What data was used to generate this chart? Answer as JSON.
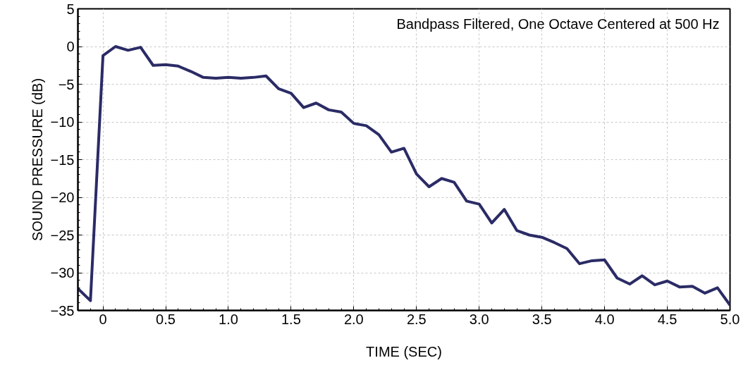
{
  "chart_data": {
    "type": "line",
    "title": "Bandpass Filtered, One Octave Centered at 500 Hz",
    "xlabel": "TIME (SEC)",
    "ylabel": "SOUND PRESSURE (dB)",
    "x": [
      -0.2,
      -0.1,
      0.0,
      0.1,
      0.2,
      0.3,
      0.4,
      0.5,
      0.6,
      0.7,
      0.8,
      0.9,
      1.0,
      1.1,
      1.2,
      1.3,
      1.4,
      1.5,
      1.6,
      1.7,
      1.8,
      1.9,
      2.0,
      2.1,
      2.2,
      2.3,
      2.4,
      2.5,
      2.6,
      2.7,
      2.8,
      2.9,
      3.0,
      3.1,
      3.2,
      3.3,
      3.4,
      3.5,
      3.6,
      3.7,
      3.8,
      3.9,
      4.0,
      4.1,
      4.2,
      4.3,
      4.4,
      4.5,
      4.6,
      4.7,
      4.8,
      4.9,
      5.0
    ],
    "series": [
      {
        "color": "#2b2b66",
        "values": [
          -32.1,
          -33.7,
          -1.2,
          0.0,
          -0.5,
          -0.1,
          -2.5,
          -2.4,
          -2.6,
          -3.3,
          -4.1,
          -4.2,
          -4.1,
          -4.2,
          -4.1,
          -3.9,
          -5.6,
          -6.2,
          -8.1,
          -7.5,
          -8.4,
          -8.7,
          -10.2,
          -10.5,
          -11.7,
          -14.0,
          -13.5,
          -16.9,
          -18.6,
          -17.5,
          -18.0,
          -20.5,
          -20.9,
          -23.4,
          -21.6,
          -24.4,
          -25.0,
          -25.3,
          -26.0,
          -26.8,
          -28.8,
          -28.4,
          -28.3,
          -30.7,
          -31.5,
          -30.4,
          -31.6,
          -31.1,
          -31.9,
          -31.8,
          -32.7,
          -32.0,
          -34.3
        ]
      }
    ],
    "xlim": [
      -0.2,
      5.0
    ],
    "ylim": [
      -35,
      5
    ],
    "xticks": [
      {
        "value": 0,
        "label": "0"
      },
      0.5,
      {
        "value": 1,
        "label": "1.0"
      },
      1.5,
      {
        "value": 2,
        "label": "2.0"
      },
      2.5,
      {
        "value": 3,
        "label": "3.0"
      },
      3.5,
      {
        "value": 4,
        "label": "4.0"
      },
      4.5,
      {
        "value": 5,
        "label": "5.0"
      }
    ],
    "yticks": [
      -35,
      -30,
      -25,
      -20,
      -15,
      -10,
      -5,
      0,
      5
    ],
    "grid": true,
    "marker": "none",
    "line_style": "solid"
  }
}
